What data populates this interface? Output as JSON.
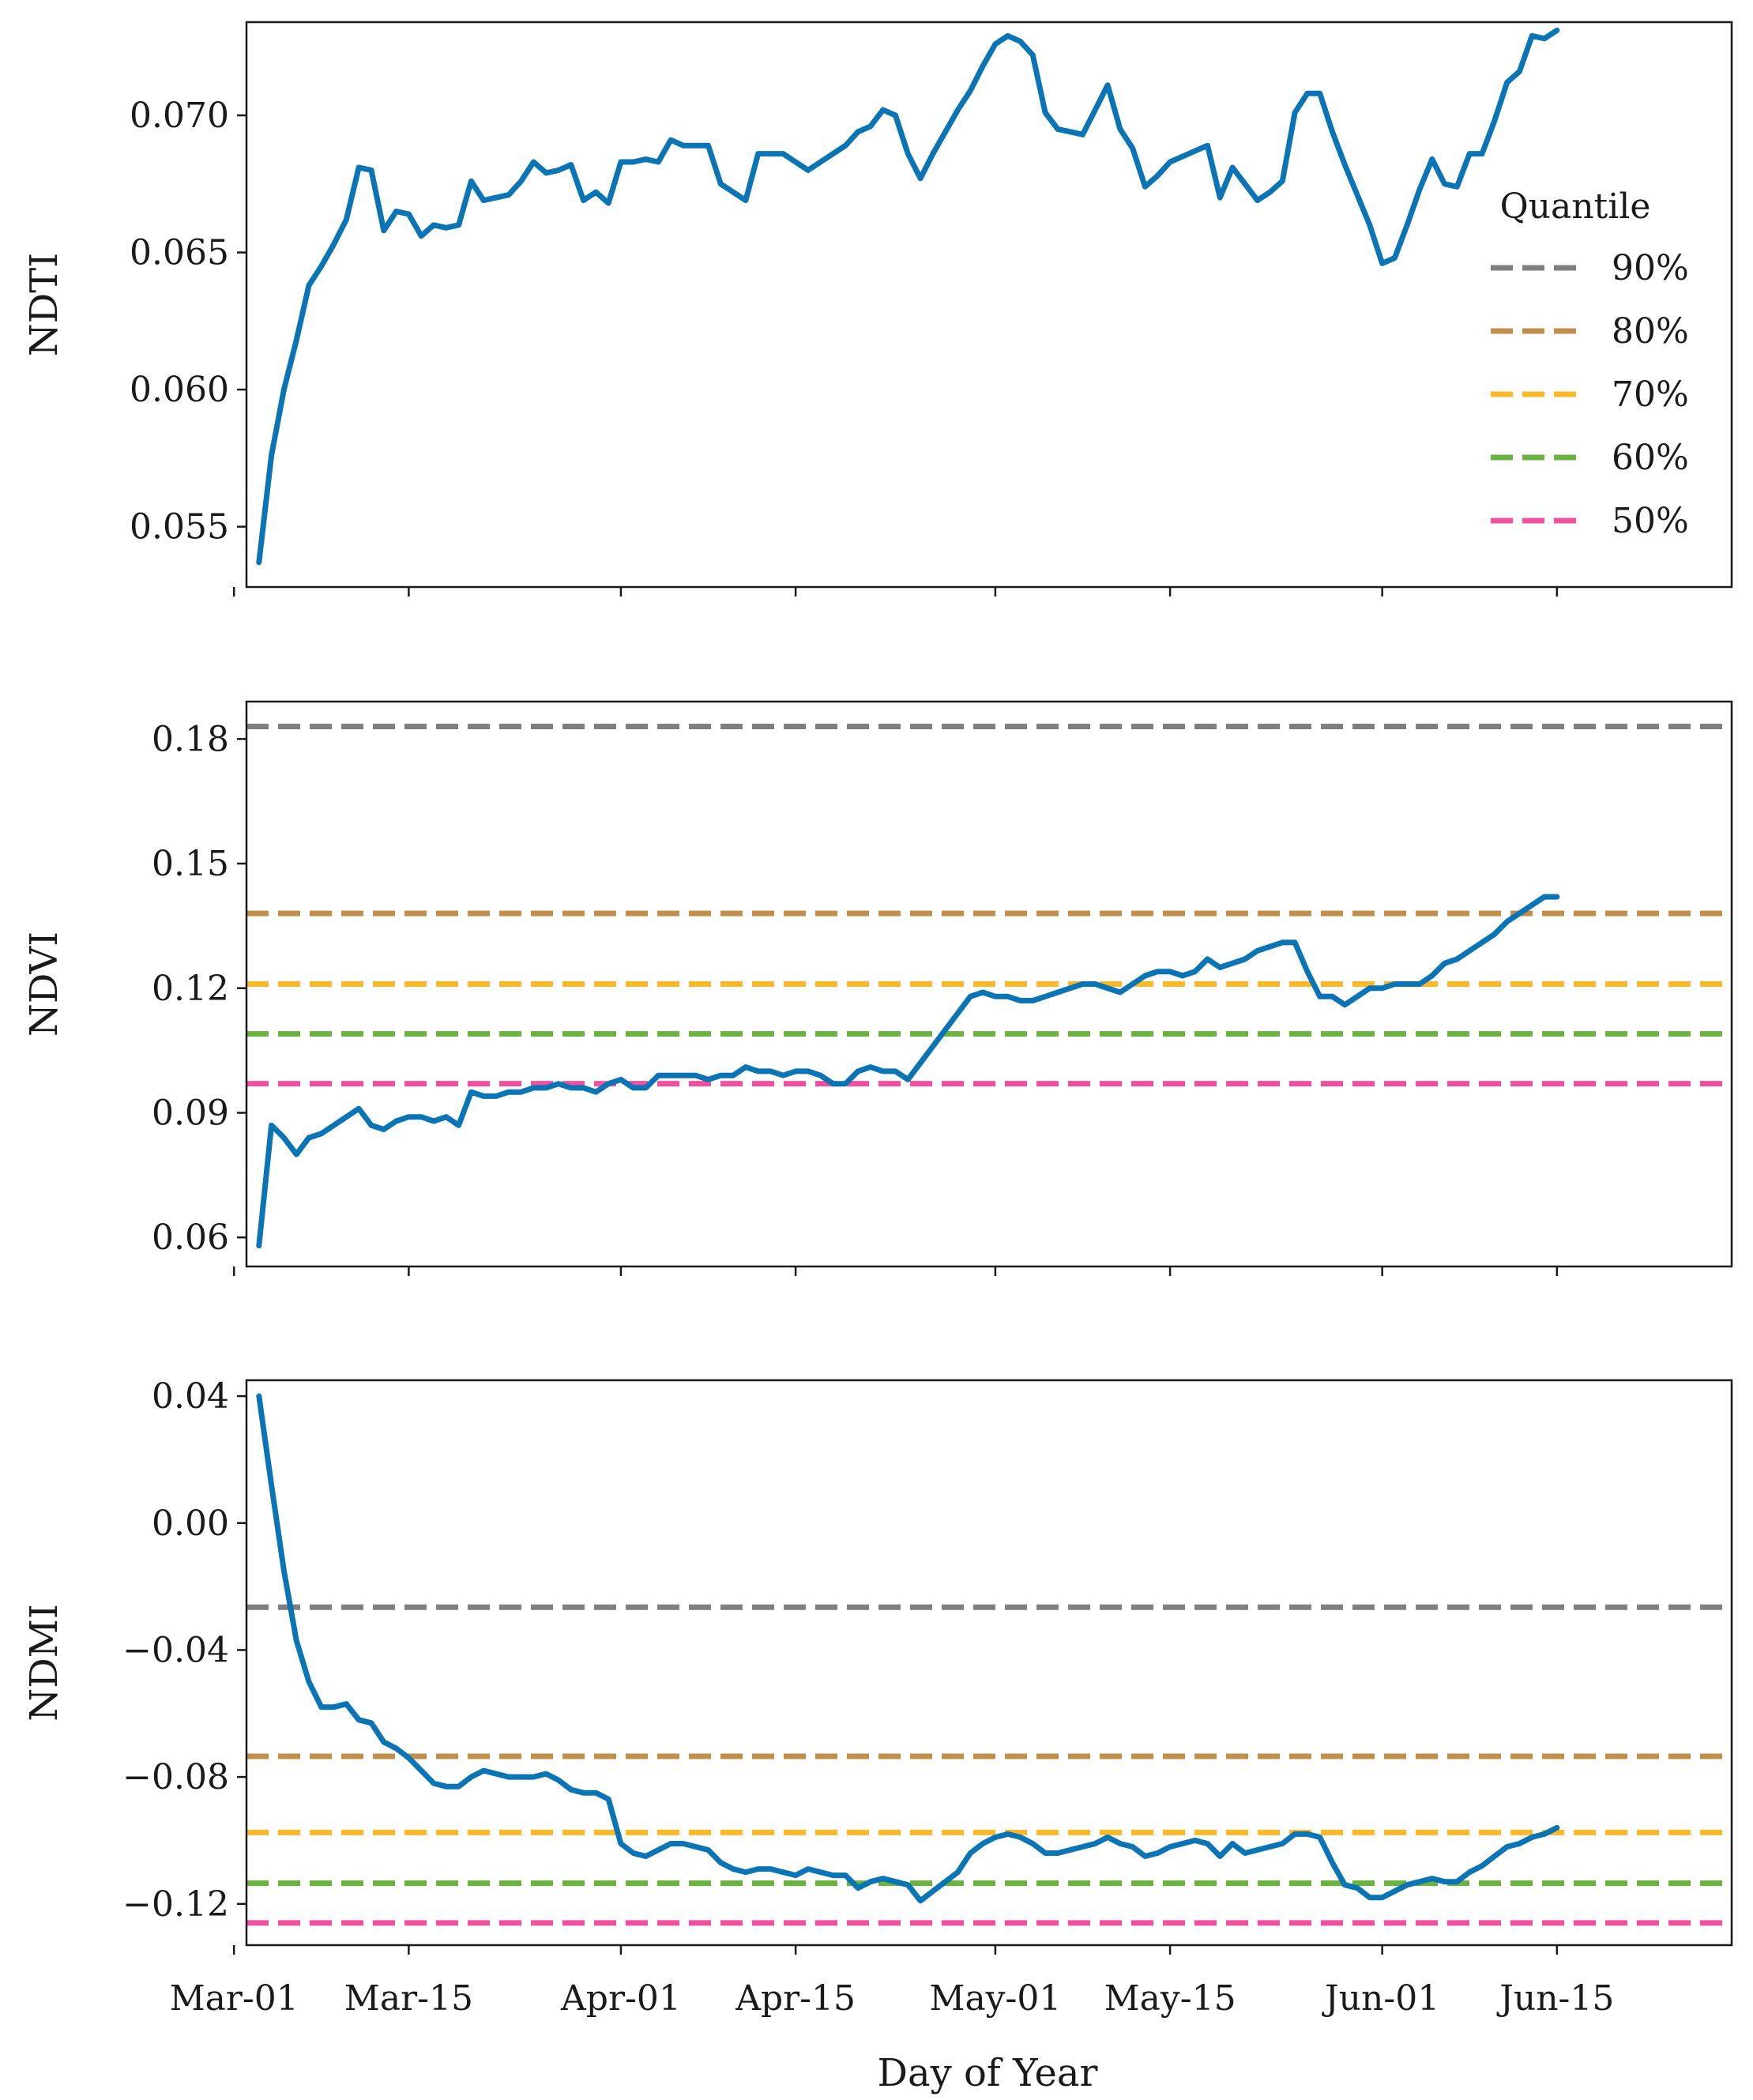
{
  "chart_data": [
    {
      "type": "line",
      "id": "ndti",
      "ylabel": "NDTI",
      "ylim": [
        0.0528,
        0.0734
      ],
      "yticks": [
        0.055,
        0.06,
        0.065,
        0.07
      ],
      "ytick_labels": [
        "0.055",
        "0.060",
        "0.065",
        "0.070"
      ],
      "series": [
        {
          "name": "NDTI",
          "color": "#0a74b5",
          "x": [
            62,
            63,
            64,
            65,
            66,
            67,
            68,
            69,
            70,
            71,
            72,
            73,
            74,
            75,
            76,
            77,
            78,
            79,
            80,
            81,
            82,
            83,
            84,
            85,
            86,
            87,
            88,
            89,
            90,
            91,
            92,
            93,
            94,
            95,
            96,
            97,
            98,
            99,
            100,
            101,
            102,
            103,
            104,
            105,
            106,
            107,
            108,
            109,
            110,
            111,
            112,
            113,
            114,
            115,
            116,
            117,
            118,
            119,
            120,
            121,
            122,
            123,
            124,
            125,
            126,
            127,
            128,
            129,
            130,
            131,
            132,
            133,
            134,
            135,
            136,
            137,
            138,
            139,
            140,
            141,
            142,
            143,
            144,
            145,
            146,
            147,
            148,
            149,
            150,
            151,
            152,
            153,
            154,
            155,
            156,
            157,
            158,
            159,
            160,
            161,
            162,
            163,
            164,
            165,
            166
          ],
          "values": [
            0.0537,
            0.0576,
            0.06,
            0.0618,
            0.0638,
            0.0645,
            0.0653,
            0.0662,
            0.0681,
            0.068,
            0.0658,
            0.0665,
            0.0664,
            0.0656,
            0.066,
            0.0659,
            0.066,
            0.0676,
            0.0669,
            0.067,
            0.0671,
            0.0676,
            0.0683,
            0.0679,
            0.068,
            0.0682,
            0.0669,
            0.0672,
            0.0668,
            0.0683,
            0.0683,
            0.0684,
            0.0683,
            0.0691,
            0.0689,
            0.0689,
            0.0689,
            0.0675,
            0.0672,
            0.0669,
            0.0686,
            0.0686,
            0.0686,
            0.0683,
            0.068,
            0.0683,
            0.0686,
            0.0689,
            0.0694,
            0.0696,
            0.0702,
            0.07,
            0.0686,
            0.0677,
            0.0686,
            0.0694,
            0.0702,
            0.0709,
            0.0718,
            0.0726,
            0.0729,
            0.0727,
            0.0722,
            0.0701,
            0.0695,
            0.0694,
            0.0693,
            0.0702,
            0.0711,
            0.0695,
            0.0688,
            0.0674,
            0.0678,
            0.0683,
            0.0685,
            0.0687,
            0.0689,
            0.067,
            0.0681,
            0.0675,
            0.0669,
            0.0672,
            0.0676,
            0.0701,
            0.0708,
            0.0708,
            0.0694,
            0.0682,
            0.0671,
            0.066,
            0.0646,
            0.0648,
            0.066,
            0.0673,
            0.0684,
            0.0675,
            0.0674,
            0.0686,
            0.0686,
            0.0698,
            0.0712,
            0.0716,
            0.0729,
            0.0728,
            0.0731
          ]
        }
      ],
      "legend": {
        "title": "Quantile",
        "placement": "right",
        "entries": [
          {
            "label": "90%",
            "color": "#7f7f7f"
          },
          {
            "label": "80%",
            "color": "#c18f49"
          },
          {
            "label": "70%",
            "color": "#fbb829"
          },
          {
            "label": "60%",
            "color": "#6ab340"
          },
          {
            "label": "50%",
            "color": "#f0509e"
          }
        ]
      }
    },
    {
      "type": "line",
      "id": "ndvi",
      "ylabel": "NDVI",
      "ylim": [
        0.053,
        0.189
      ],
      "yticks": [
        0.06,
        0.09,
        0.12,
        0.15,
        0.18
      ],
      "ytick_labels": [
        "0.06",
        "0.09",
        "0.12",
        "0.15",
        "0.18"
      ],
      "hlines": [
        {
          "quantile": "90%",
          "value": 0.183,
          "color": "#7f7f7f"
        },
        {
          "quantile": "80%",
          "value": 0.138,
          "color": "#c18f49"
        },
        {
          "quantile": "70%",
          "value": 0.121,
          "color": "#fbb829"
        },
        {
          "quantile": "60%",
          "value": 0.109,
          "color": "#6ab340"
        },
        {
          "quantile": "50%",
          "value": 0.097,
          "color": "#f0509e"
        }
      ],
      "series": [
        {
          "name": "NDVI",
          "color": "#0a74b5",
          "x": [
            62,
            63,
            64,
            65,
            66,
            67,
            68,
            69,
            70,
            71,
            72,
            73,
            74,
            75,
            76,
            77,
            78,
            79,
            80,
            81,
            82,
            83,
            84,
            85,
            86,
            87,
            88,
            89,
            90,
            91,
            92,
            93,
            94,
            95,
            96,
            97,
            98,
            99,
            100,
            101,
            102,
            103,
            104,
            105,
            106,
            107,
            108,
            109,
            110,
            111,
            112,
            113,
            114,
            115,
            116,
            117,
            118,
            119,
            120,
            121,
            122,
            123,
            124,
            125,
            126,
            127,
            128,
            129,
            130,
            131,
            132,
            133,
            134,
            135,
            136,
            137,
            138,
            139,
            140,
            141,
            142,
            143,
            144,
            145,
            146,
            147,
            148,
            149,
            150,
            151,
            152,
            153,
            154,
            155,
            156,
            157,
            158,
            159,
            160,
            161,
            162,
            163,
            164,
            165,
            166
          ],
          "values": [
            0.058,
            0.087,
            0.084,
            0.08,
            0.084,
            0.085,
            0.087,
            0.089,
            0.091,
            0.087,
            0.086,
            0.088,
            0.089,
            0.089,
            0.088,
            0.089,
            0.087,
            0.095,
            0.094,
            0.094,
            0.095,
            0.095,
            0.096,
            0.096,
            0.097,
            0.096,
            0.096,
            0.095,
            0.097,
            0.098,
            0.096,
            0.096,
            0.099,
            0.099,
            0.099,
            0.099,
            0.098,
            0.099,
            0.099,
            0.101,
            0.1,
            0.1,
            0.099,
            0.1,
            0.1,
            0.099,
            0.097,
            0.097,
            0.1,
            0.101,
            0.1,
            0.1,
            0.098,
            0.102,
            0.106,
            0.11,
            0.114,
            0.118,
            0.119,
            0.118,
            0.118,
            0.117,
            0.117,
            0.118,
            0.119,
            0.12,
            0.121,
            0.121,
            0.12,
            0.119,
            0.121,
            0.123,
            0.124,
            0.124,
            0.123,
            0.124,
            0.127,
            0.125,
            0.126,
            0.127,
            0.129,
            0.13,
            0.131,
            0.131,
            0.124,
            0.118,
            0.118,
            0.116,
            0.118,
            0.12,
            0.12,
            0.121,
            0.121,
            0.121,
            0.123,
            0.126,
            0.127,
            0.129,
            0.131,
            0.133,
            0.136,
            0.138,
            0.14,
            0.142,
            0.142
          ]
        }
      ]
    },
    {
      "type": "line",
      "id": "ndmi",
      "ylabel": "NDMI",
      "ylim": [
        -0.133,
        0.045
      ],
      "yticks": [
        -0.12,
        -0.08,
        -0.04,
        0.0,
        0.04
      ],
      "ytick_labels": [
        "−0.12",
        "−0.08",
        "−0.04",
        "0.00",
        "0.04"
      ],
      "hlines": [
        {
          "quantile": "90%",
          "value": -0.0265,
          "color": "#7f7f7f"
        },
        {
          "quantile": "80%",
          "value": -0.0735,
          "color": "#c18f49"
        },
        {
          "quantile": "70%",
          "value": -0.0975,
          "color": "#fbb829"
        },
        {
          "quantile": "60%",
          "value": -0.1135,
          "color": "#6ab340"
        },
        {
          "quantile": "50%",
          "value": -0.126,
          "color": "#f0509e"
        }
      ],
      "series": [
        {
          "name": "NDMI",
          "color": "#0a74b5",
          "x": [
            62,
            63,
            64,
            65,
            66,
            67,
            68,
            69,
            70,
            71,
            72,
            73,
            74,
            75,
            76,
            77,
            78,
            79,
            80,
            81,
            82,
            83,
            84,
            85,
            86,
            87,
            88,
            89,
            90,
            91,
            92,
            93,
            94,
            95,
            96,
            97,
            98,
            99,
            100,
            101,
            102,
            103,
            104,
            105,
            106,
            107,
            108,
            109,
            110,
            111,
            112,
            113,
            114,
            115,
            116,
            117,
            118,
            119,
            120,
            121,
            122,
            123,
            124,
            125,
            126,
            127,
            128,
            129,
            130,
            131,
            132,
            133,
            134,
            135,
            136,
            137,
            138,
            139,
            140,
            141,
            142,
            143,
            144,
            145,
            146,
            147,
            148,
            149,
            150,
            151,
            152,
            153,
            154,
            155,
            156,
            157,
            158,
            159,
            160,
            161,
            162,
            163,
            164,
            165,
            166
          ],
          "values": [
            0.04,
            0.012,
            -0.015,
            -0.037,
            -0.05,
            -0.058,
            -0.058,
            -0.057,
            -0.062,
            -0.063,
            -0.069,
            -0.071,
            -0.074,
            -0.078,
            -0.082,
            -0.083,
            -0.083,
            -0.08,
            -0.078,
            -0.079,
            -0.08,
            -0.08,
            -0.08,
            -0.079,
            -0.081,
            -0.084,
            -0.085,
            -0.085,
            -0.087,
            -0.101,
            -0.104,
            -0.105,
            -0.103,
            -0.101,
            -0.101,
            -0.102,
            -0.103,
            -0.107,
            -0.109,
            -0.11,
            -0.109,
            -0.109,
            -0.11,
            -0.111,
            -0.109,
            -0.11,
            -0.111,
            -0.111,
            -0.115,
            -0.113,
            -0.112,
            -0.113,
            -0.114,
            -0.119,
            -0.116,
            -0.113,
            -0.11,
            -0.104,
            -0.101,
            -0.099,
            -0.098,
            -0.099,
            -0.101,
            -0.104,
            -0.104,
            -0.103,
            -0.102,
            -0.101,
            -0.099,
            -0.101,
            -0.102,
            -0.105,
            -0.104,
            -0.102,
            -0.101,
            -0.1,
            -0.101,
            -0.105,
            -0.101,
            -0.104,
            -0.103,
            -0.102,
            -0.101,
            -0.098,
            -0.098,
            -0.099,
            -0.107,
            -0.114,
            -0.115,
            -0.118,
            -0.118,
            -0.116,
            -0.114,
            -0.113,
            -0.112,
            -0.113,
            -0.113,
            -0.11,
            -0.108,
            -0.105,
            -0.102,
            -0.101,
            -0.099,
            -0.098,
            -0.096
          ]
        }
      ]
    }
  ],
  "xaxis": {
    "label": "Day of Year",
    "xlim": [
      61,
      180
    ],
    "ticks": [
      {
        "value": 60,
        "label": "Mar-01"
      },
      {
        "value": 74,
        "label": "Mar-15"
      },
      {
        "value": 91,
        "label": "Apr-01"
      },
      {
        "value": 105,
        "label": "Apr-15"
      },
      {
        "value": 121,
        "label": "May-01"
      },
      {
        "value": 135,
        "label": "May-15"
      },
      {
        "value": 152,
        "label": "Jun-01"
      },
      {
        "value": 166,
        "label": "Jun-15"
      }
    ]
  }
}
